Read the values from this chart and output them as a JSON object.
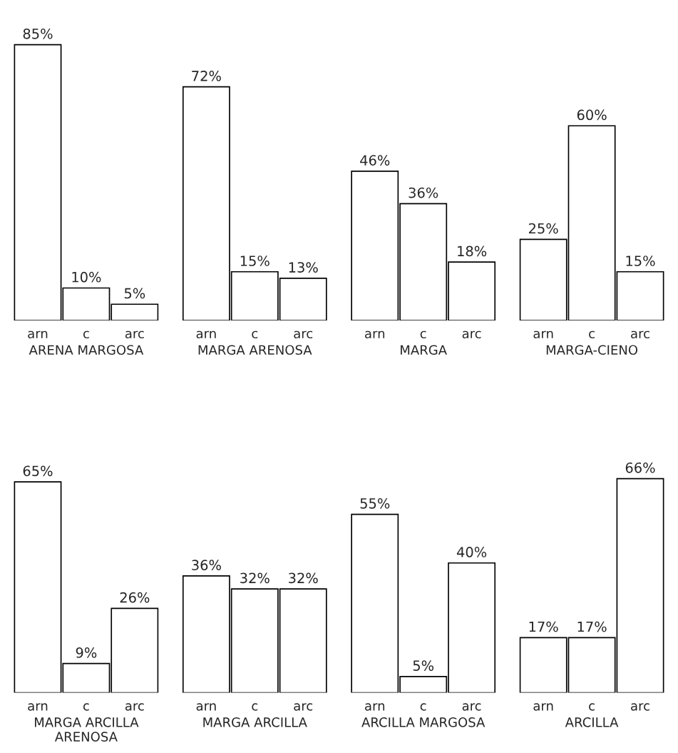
{
  "chart_data": [
    {
      "type": "bar",
      "xlabel": "ARENA MARGOSA",
      "categories": [
        "arn",
        "c",
        "arc"
      ],
      "values": [
        85,
        10,
        5
      ],
      "value_labels": [
        "85%",
        "10%",
        "5%"
      ],
      "color": "#ffffff"
    },
    {
      "type": "bar",
      "xlabel": "MARGA ARENOSA",
      "categories": [
        "arn",
        "c",
        "arc"
      ],
      "values": [
        72,
        15,
        13
      ],
      "value_labels": [
        "72%",
        "15%",
        "13%"
      ],
      "color": "#ffffff"
    },
    {
      "type": "bar",
      "xlabel": "MARGA",
      "categories": [
        "arn",
        "c",
        "arc"
      ],
      "values": [
        46,
        36,
        18
      ],
      "value_labels": [
        "46%",
        "36%",
        "18%"
      ],
      "color": "#ffffff"
    },
    {
      "type": "bar",
      "xlabel": "MARGA-CIENO",
      "categories": [
        "arn",
        "c",
        "arc"
      ],
      "values": [
        25,
        60,
        15
      ],
      "value_labels": [
        "25%",
        "60%",
        "15%"
      ],
      "color": "#ffffff"
    },
    {
      "type": "bar",
      "xlabel": "MARGA ARCILLA ARENOSA",
      "categories": [
        "arn",
        "c",
        "arc"
      ],
      "values": [
        65,
        9,
        26
      ],
      "value_labels": [
        "65%",
        "9%",
        "26%"
      ],
      "color": "#ffffff"
    },
    {
      "type": "bar",
      "xlabel": "MARGA ARCILLA",
      "categories": [
        "arn",
        "c",
        "arc"
      ],
      "values": [
        36,
        32,
        32
      ],
      "value_labels": [
        "36%",
        "32%",
        "32%"
      ],
      "color": "#ffffff"
    },
    {
      "type": "bar",
      "xlabel": "ARCILLA MARGOSA",
      "categories": [
        "arn",
        "c",
        "arc"
      ],
      "values": [
        55,
        5,
        40
      ],
      "value_labels": [
        "55%",
        "5%",
        "40%"
      ],
      "color": "#ffffff"
    },
    {
      "type": "bar",
      "xlabel": "ARCILLA",
      "categories": [
        "arn",
        "c",
        "arc"
      ],
      "values": [
        17,
        17,
        66
      ],
      "value_labels": [
        "17%",
        "17%",
        "66%"
      ],
      "color": "#ffffff"
    }
  ]
}
